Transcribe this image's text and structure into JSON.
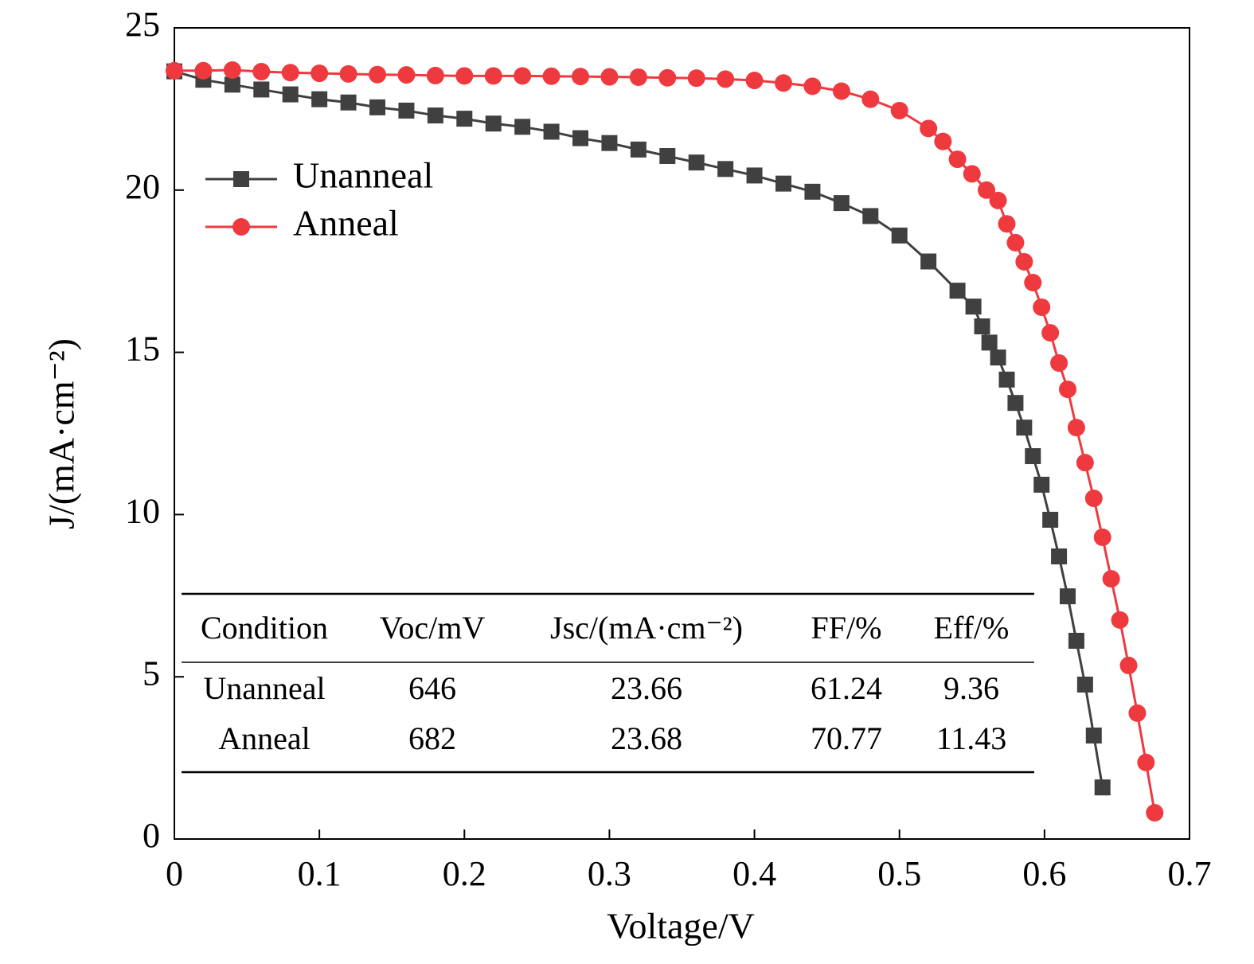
{
  "chart_data": {
    "type": "line",
    "x_label": "Voltage/V",
    "y_label": "J/(mA·cm⁻²)",
    "xlim": [
      0,
      0.7
    ],
    "ylim": [
      0,
      25
    ],
    "xticks": [
      0,
      0.1,
      0.2,
      0.3,
      0.4,
      0.5,
      0.6,
      0.7
    ],
    "yticks": [
      0,
      5,
      10,
      15,
      20,
      25
    ],
    "legend": "upper left",
    "series": [
      {
        "name": "Unanneal",
        "color": "#404040",
        "marker": "square",
        "x": [
          0,
          0.02,
          0.04,
          0.06,
          0.08,
          0.1,
          0.12,
          0.14,
          0.16,
          0.18,
          0.2,
          0.22,
          0.24,
          0.26,
          0.28,
          0.3,
          0.32,
          0.34,
          0.36,
          0.38,
          0.4,
          0.42,
          0.44,
          0.46,
          0.48,
          0.5,
          0.52,
          0.54,
          0.551,
          0.557,
          0.562,
          0.568,
          0.574,
          0.58,
          0.586,
          0.592,
          0.598,
          0.604,
          0.61,
          0.616,
          0.622,
          0.628,
          0.634,
          0.64
        ],
        "values": [
          23.66,
          23.4,
          23.25,
          23.1,
          22.95,
          22.8,
          22.7,
          22.55,
          22.45,
          22.3,
          22.2,
          22.05,
          21.95,
          21.8,
          21.6,
          21.45,
          21.25,
          21.05,
          20.85,
          20.65,
          20.45,
          20.2,
          19.95,
          19.6,
          19.2,
          18.6,
          17.8,
          16.9,
          16.41,
          15.8,
          15.3,
          14.84,
          14.16,
          13.44,
          12.68,
          11.8,
          10.92,
          9.84,
          8.71,
          7.48,
          6.11,
          4.76,
          3.19,
          1.59
        ]
      },
      {
        "name": "Anneal",
        "color": "#ee3a3f",
        "marker": "circle",
        "x": [
          0,
          0.02,
          0.04,
          0.06,
          0.08,
          0.1,
          0.12,
          0.14,
          0.16,
          0.18,
          0.2,
          0.22,
          0.24,
          0.26,
          0.28,
          0.3,
          0.32,
          0.34,
          0.36,
          0.38,
          0.4,
          0.42,
          0.44,
          0.46,
          0.48,
          0.5,
          0.52,
          0.53,
          0.54,
          0.55,
          0.56,
          0.568,
          0.574,
          0.58,
          0.586,
          0.592,
          0.598,
          0.604,
          0.61,
          0.616,
          0.622,
          0.628,
          0.634,
          0.64,
          0.646,
          0.652,
          0.658,
          0.664,
          0.67,
          0.676
        ],
        "values": [
          23.68,
          23.68,
          23.7,
          23.65,
          23.62,
          23.6,
          23.58,
          23.56,
          23.55,
          23.53,
          23.52,
          23.52,
          23.52,
          23.51,
          23.5,
          23.49,
          23.48,
          23.46,
          23.45,
          23.42,
          23.38,
          23.3,
          23.2,
          23.05,
          22.8,
          22.45,
          21.9,
          21.5,
          20.95,
          20.5,
          20.0,
          19.68,
          18.96,
          18.38,
          17.79,
          17.15,
          16.39,
          15.6,
          14.67,
          13.86,
          12.68,
          11.6,
          10.5,
          9.3,
          8.02,
          6.75,
          5.35,
          3.88,
          2.36,
          0.81
        ]
      }
    ],
    "table": {
      "columns": [
        "Condition",
        "Voc/mV",
        "Jsc/(mA·cm⁻²)",
        "FF/%",
        "Eff/%"
      ],
      "rows": [
        [
          "Unanneal",
          646,
          23.66,
          61.24,
          9.36
        ],
        [
          "Anneal",
          682,
          23.68,
          70.77,
          11.43
        ]
      ]
    }
  }
}
